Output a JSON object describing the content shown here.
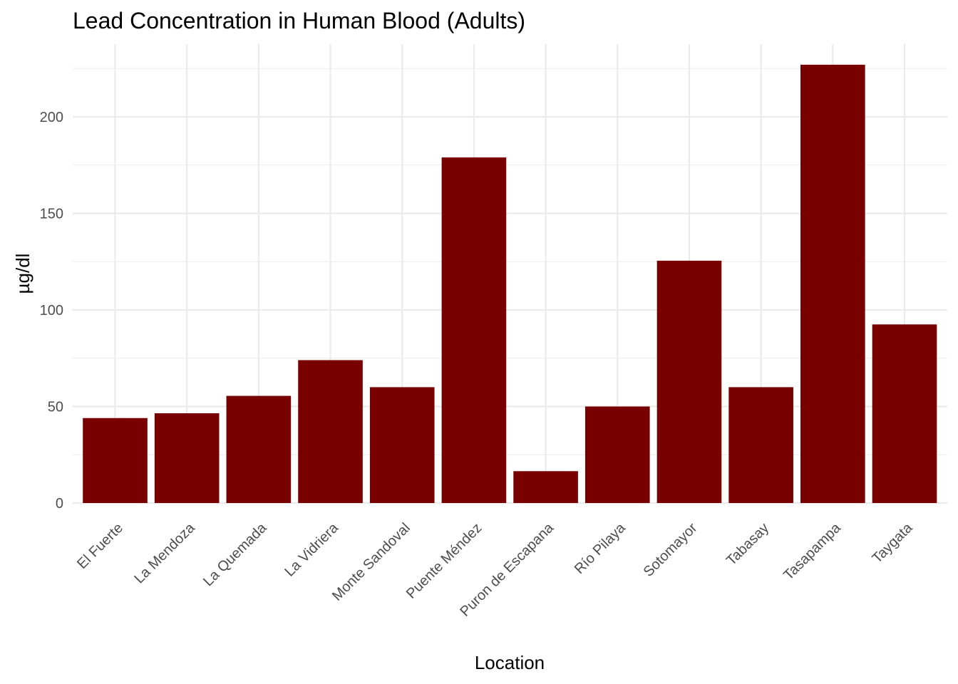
{
  "chart_data": {
    "type": "bar",
    "title": "Lead Concentration in Human Blood (Adults)",
    "xlabel": "Location",
    "ylabel": "µg/dl",
    "categories": [
      "El Fuerte",
      "La Mendoza",
      "La Quemada",
      "La Vidriera",
      "Monte Sandoval",
      "Puente Méndez",
      "Puron de Escapana",
      "Río Pilaya",
      "Sotomayor",
      "Tabasay",
      "Tasapampa",
      "Taygata"
    ],
    "values": [
      44,
      46.5,
      55.5,
      74,
      60,
      179,
      16.5,
      50,
      125.5,
      60,
      227,
      92.5
    ],
    "ylim": [
      0,
      238
    ],
    "yticks": [
      0,
      50,
      100,
      150,
      200
    ],
    "grid": true,
    "bar_color": "#780000"
  }
}
